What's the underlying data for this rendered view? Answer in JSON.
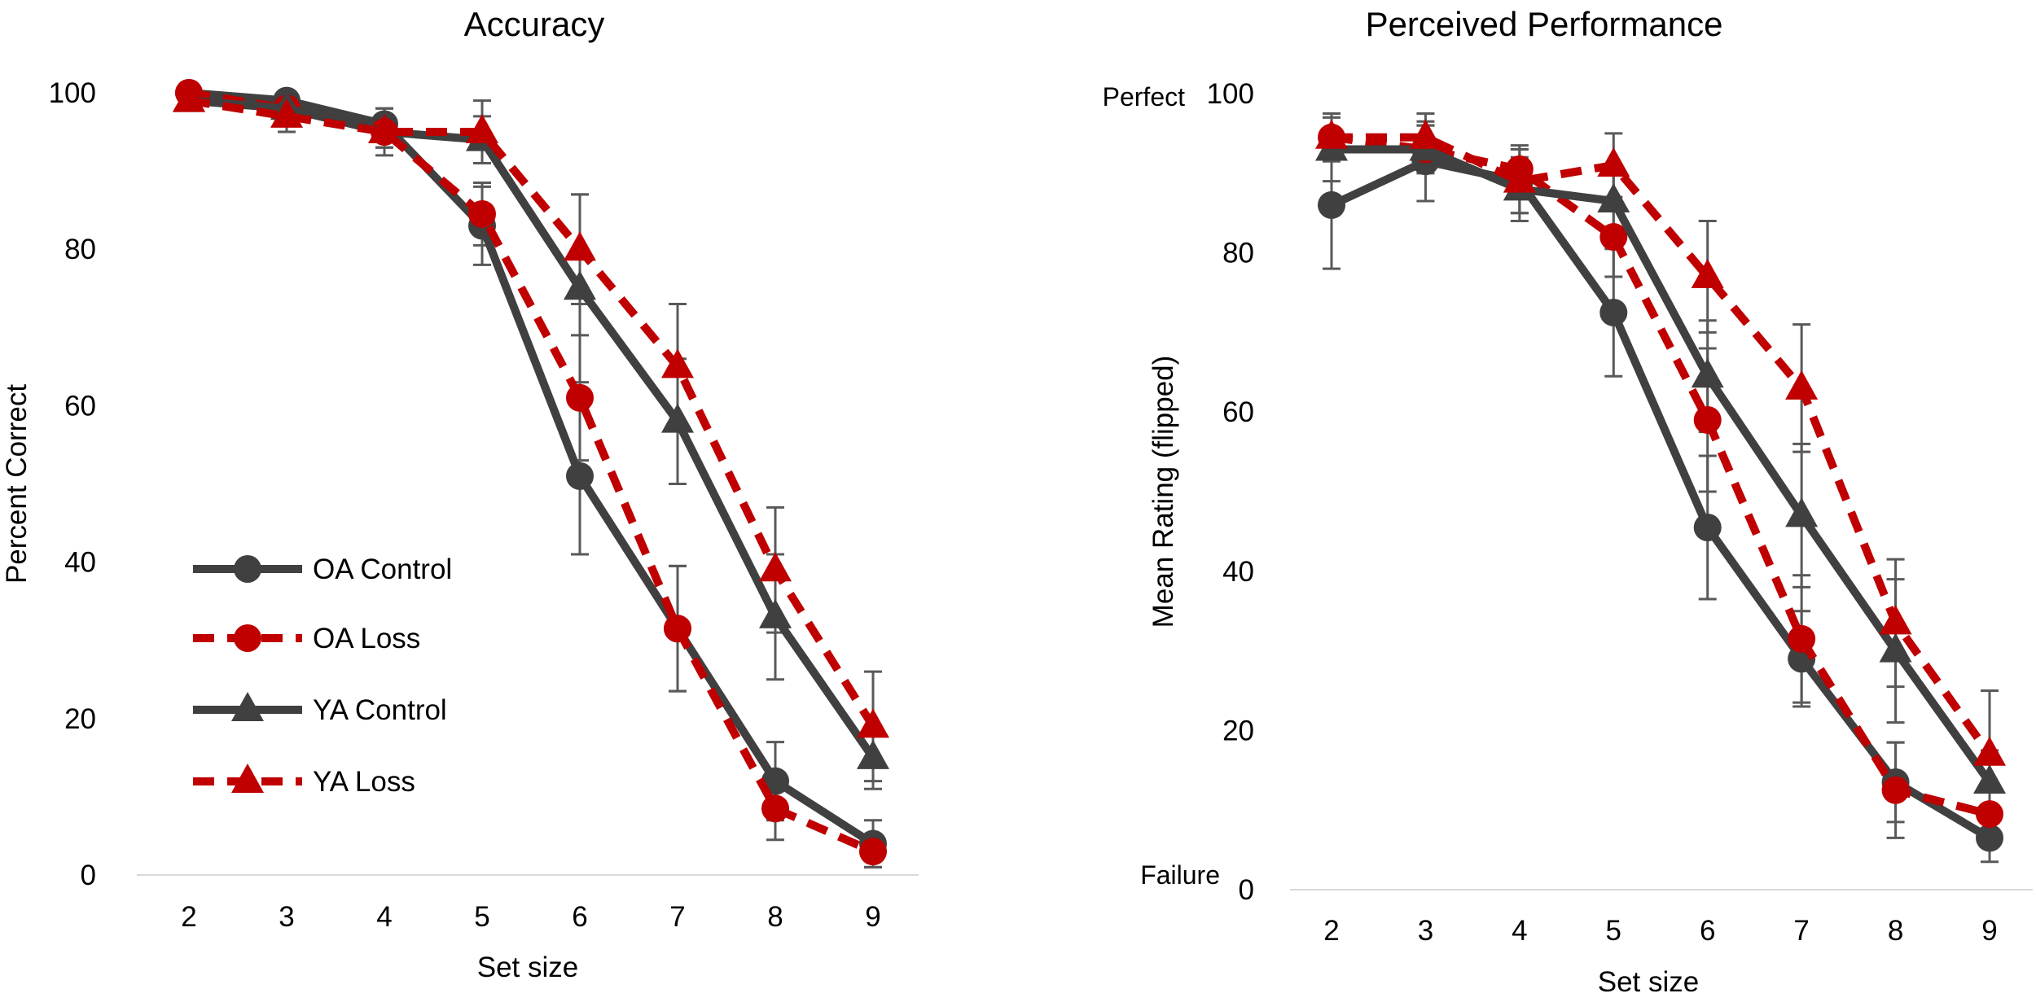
{
  "chart_data": [
    {
      "type": "line",
      "title": "Accuracy",
      "xlabel": "Set size",
      "ylabel": "Percent Correct",
      "ylim": [
        0,
        100
      ],
      "yticks": [
        0,
        20,
        40,
        60,
        80,
        100
      ],
      "x": [
        2,
        3,
        4,
        5,
        6,
        7,
        8,
        9
      ],
      "legend": "center-left",
      "grid": false,
      "series": [
        {
          "name": "OA Control",
          "color": "#404040",
          "dash": false,
          "marker": "circle",
          "values": [
            100,
            99,
            96,
            83,
            51,
            31.5,
            12,
            4
          ],
          "errors": [
            1,
            2,
            2,
            5,
            10,
            8,
            5,
            3
          ]
        },
        {
          "name": "OA Loss",
          "color": "#C00000",
          "dash": true,
          "marker": "circle",
          "values": [
            100,
            98,
            95,
            84.5,
            61,
            31.5,
            8.5,
            3
          ],
          "errors": [
            1,
            3,
            3,
            4,
            8,
            8,
            4,
            2
          ]
        },
        {
          "name": "YA Control",
          "color": "#404040",
          "dash": false,
          "marker": "triangle",
          "values": [
            99,
            98,
            95,
            94,
            75,
            58,
            33,
            15
          ],
          "errors": [
            1,
            2,
            2,
            3,
            12,
            8,
            8,
            4
          ]
        },
        {
          "name": "YA Loss",
          "color": "#C00000",
          "dash": true,
          "marker": "triangle",
          "values": [
            99,
            97,
            95,
            95,
            80,
            65,
            39,
            19
          ],
          "errors": [
            1,
            2,
            2,
            4,
            7,
            8,
            8,
            7
          ]
        }
      ]
    },
    {
      "type": "line",
      "title": "Perceived Performance",
      "xlabel": "Set size",
      "ylabel": "Mean Rating (flipped)",
      "ylim": [
        0,
        100
      ],
      "yticks": [
        0,
        20,
        40,
        60,
        80,
        100
      ],
      "top_anchor_label": "Perfect",
      "bottom_anchor_label": "Failure",
      "x": [
        2,
        3,
        4,
        5,
        6,
        7,
        8,
        9
      ],
      "grid": false,
      "series": [
        {
          "name": "OA Control",
          "color": "#404040",
          "dash": false,
          "marker": "circle",
          "values": [
            86,
            91.5,
            89,
            72.5,
            45.5,
            29,
            13.5,
            6.5
          ],
          "errors": [
            8,
            5,
            4,
            8,
            9,
            6,
            5,
            3
          ]
        },
        {
          "name": "OA Loss",
          "color": "#C00000",
          "dash": true,
          "marker": "circle",
          "values": [
            94.5,
            93,
            90.5,
            82,
            59,
            31.5,
            12.5,
            9.5
          ],
          "errors": [
            3,
            3,
            3,
            5,
            9,
            8,
            6,
            4
          ]
        },
        {
          "name": "YA Control",
          "color": "#404040",
          "dash": false,
          "marker": "triangle",
          "values": [
            93,
            93,
            88,
            86.5,
            64.5,
            47,
            30,
            13.5
          ],
          "errors": [
            4,
            3,
            4,
            4,
            7,
            9,
            9,
            4
          ]
        },
        {
          "name": "YA Loss",
          "color": "#C00000",
          "dash": true,
          "marker": "triangle",
          "values": [
            94.5,
            94.5,
            89,
            91,
            77,
            63,
            33.5,
            17
          ],
          "errors": [
            3,
            3,
            4,
            4,
            7,
            8,
            8,
            8
          ]
        }
      ]
    }
  ]
}
